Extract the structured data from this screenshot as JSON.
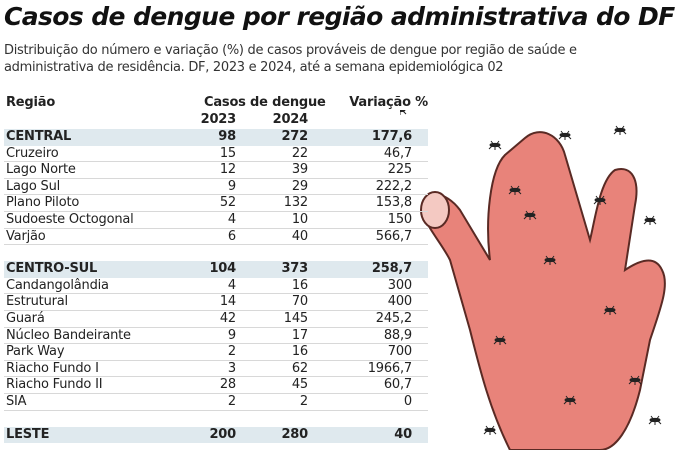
{
  "title": "Casos de dengue por região administrativa do DF",
  "subtitle": "Distribuição do número e variação (%) de casos prováveis de dengue por região de saúde e administrativa de residência. DF, 2023 e 2024, até a semana epidemiológica 02",
  "colors": {
    "group_row": "#dfe9ee",
    "hand": "#e8837a",
    "mosquito": "#222222"
  },
  "chart_data": {
    "type": "table",
    "headers": {
      "region": "Região",
      "cases": "Casos de dengue",
      "y2023": "2023",
      "y2024": "2024",
      "variation": "Variação %"
    },
    "groups": [
      {
        "name": "CENTRAL",
        "y2023": "98",
        "y2024": "272",
        "variation": "177,6",
        "rows": [
          {
            "name": "Cruzeiro",
            "y2023": "15",
            "y2024": "22",
            "variation": "46,7"
          },
          {
            "name": "Lago Norte",
            "y2023": "12",
            "y2024": "39",
            "variation": "225"
          },
          {
            "name": "Lago Sul",
            "y2023": "9",
            "y2024": "29",
            "variation": "222,2"
          },
          {
            "name": "Plano Piloto",
            "y2023": "52",
            "y2024": "132",
            "variation": "153,8"
          },
          {
            "name": "Sudoeste Octogonal",
            "y2023": "4",
            "y2024": "10",
            "variation": "150"
          },
          {
            "name": "Varjão",
            "y2023": "6",
            "y2024": "40",
            "variation": "566,7"
          }
        ]
      },
      {
        "name": "CENTRO-SUL",
        "y2023": "104",
        "y2024": "373",
        "variation": "258,7",
        "rows": [
          {
            "name": "Candangolândia",
            "y2023": "4",
            "y2024": "16",
            "variation": "300"
          },
          {
            "name": "Estrutural",
            "y2023": "14",
            "y2024": "70",
            "variation": "400"
          },
          {
            "name": "Guará",
            "y2023": "42",
            "y2024": "145",
            "variation": "245,2"
          },
          {
            "name": "Núcleo Bandeirante",
            "y2023": "9",
            "y2024": "17",
            "variation": "88,9"
          },
          {
            "name": "Park Way",
            "y2023": "2",
            "y2024": "16",
            "variation": "700"
          },
          {
            "name": "Riacho Fundo I",
            "y2023": "3",
            "y2024": "62",
            "variation": "1966,7"
          },
          {
            "name": "Riacho Fundo II",
            "y2023": "28",
            "y2024": "45",
            "variation": "60,7"
          },
          {
            "name": "SIA",
            "y2023": "2",
            "y2024": "2",
            "variation": "0"
          }
        ]
      },
      {
        "name": "LESTE",
        "y2023": "200",
        "y2024": "280",
        "variation": "40",
        "rows": []
      }
    ]
  }
}
